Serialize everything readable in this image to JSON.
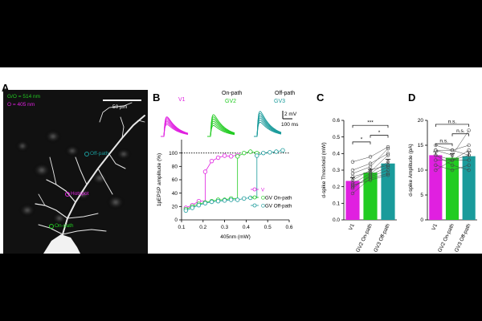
{
  "panels": {
    "a": "A",
    "b": "B",
    "c": "C",
    "d": "D"
  },
  "panel_a": {
    "legend_green": "G/",
    "legend_green_rest": "O = 514 nm",
    "legend_magenta": "O = 405 nm",
    "scale_bar": "50 µm",
    "labels": {
      "off_path": "Off-path",
      "on_path": "On-path",
      "hotspot": "Hotspot"
    },
    "colors": {
      "green": "#22cc22",
      "magenta": "#e020e0",
      "teal": "#1a9b9b"
    }
  },
  "panel_b_traces": {
    "labels": [
      {
        "title": "",
        "tag": "V1",
        "color": "#e020e0"
      },
      {
        "title": "On-path",
        "tag": "GV2",
        "color": "#22cc22"
      },
      {
        "title": "Off-path",
        "tag": "GV3",
        "color": "#1a9b9b"
      }
    ],
    "scale_mv": "2 mV",
    "scale_ms": "100 ms"
  },
  "chart_data": [
    {
      "type": "line",
      "ylabel": "1pEPSP amplitude (%)",
      "xlabel": "405nm (mW)",
      "xlim": [
        0.1,
        0.6
      ],
      "ylim": [
        0,
        120
      ],
      "xticks": [
        "0.1",
        "0.2",
        "0.3",
        "0.4",
        "0.5",
        "0.6"
      ],
      "yticks": [
        "0",
        "20",
        "40",
        "60",
        "80",
        "100"
      ],
      "reference_line": 100,
      "legend": [
        "V",
        "GV On-path",
        "GV Off-path"
      ],
      "legend_prefix": [
        "",
        "O",
        "O"
      ],
      "series": [
        {
          "name": "V",
          "color": "#e020e0",
          "x": [
            0.12,
            0.15,
            0.18,
            0.21,
            0.24,
            0.27,
            0.3,
            0.33,
            0.36
          ],
          "y": [
            18,
            22,
            28,
            72,
            88,
            93,
            96,
            95,
            97
          ]
        },
        {
          "name": "GV On-path",
          "color": "#22cc22",
          "x": [
            0.12,
            0.15,
            0.18,
            0.21,
            0.24,
            0.27,
            0.3,
            0.33,
            0.36,
            0.39,
            0.42,
            0.45
          ],
          "y": [
            16,
            20,
            24,
            26,
            28,
            30,
            30,
            32,
            95,
            100,
            102,
            100
          ]
        },
        {
          "name": "GV Off-path",
          "color": "#1a9b9b",
          "x": [
            0.12,
            0.15,
            0.18,
            0.21,
            0.24,
            0.27,
            0.3,
            0.33,
            0.36,
            0.39,
            0.42,
            0.45,
            0.48,
            0.51,
            0.54,
            0.57
          ],
          "y": [
            14,
            18,
            22,
            25,
            27,
            28,
            29,
            30,
            30,
            32,
            33,
            96,
            100,
            101,
            102,
            104
          ]
        }
      ]
    },
    {
      "type": "bar",
      "ylabel": "d-spike Threshold (mW)",
      "categories": [
        "V1",
        "GV2 On-path",
        "GV3 Off-path"
      ],
      "values": [
        0.235,
        0.285,
        0.34
      ],
      "errors": [
        0.02,
        0.02,
        0.025
      ],
      "colors": [
        "#e020e0",
        "#22cc22",
        "#1a9b9b"
      ],
      "ylim": [
        0,
        0.6
      ],
      "yticks": [
        "0.0",
        "0.1",
        "0.2",
        "0.3",
        "0.4",
        "0.5",
        "0.6"
      ],
      "pairs": [
        [
          0.16,
          0.25,
          0.28
        ],
        [
          0.19,
          0.27,
          0.32
        ],
        [
          0.2,
          0.26,
          0.3
        ],
        [
          0.22,
          0.28,
          0.35
        ],
        [
          0.24,
          0.3,
          0.33
        ],
        [
          0.26,
          0.29,
          0.39
        ],
        [
          0.28,
          0.32,
          0.43
        ],
        [
          0.3,
          0.34,
          0.4
        ],
        [
          0.21,
          0.24,
          0.27
        ],
        [
          0.35,
          0.38,
          0.44
        ]
      ],
      "significance": [
        {
          "from": 0,
          "to": 2,
          "label": "***",
          "y": 0.57
        },
        {
          "from": 0,
          "to": 1,
          "label": "*",
          "y": 0.47
        },
        {
          "from": 1,
          "to": 2,
          "label": "*",
          "y": 0.51
        }
      ]
    },
    {
      "type": "bar",
      "ylabel": "d-spike Amplitude (pA)",
      "categories": [
        "V1",
        "GV2 On-path",
        "GV3 Off-path"
      ],
      "values": [
        13,
        12.5,
        12.8
      ],
      "errors": [
        0.7,
        0.8,
        0.9
      ],
      "colors": [
        "#e020e0",
        "#22cc22",
        "#1a9b9b"
      ],
      "ylim": [
        0,
        20
      ],
      "yticks": [
        "0",
        "5",
        "10",
        "15",
        "20"
      ],
      "pairs": [
        [
          15,
          14,
          13
        ],
        [
          14,
          13,
          18
        ],
        [
          13,
          12,
          12
        ],
        [
          12,
          12,
          14
        ],
        [
          11,
          10,
          11
        ],
        [
          13,
          11,
          10
        ],
        [
          10,
          12,
          13
        ],
        [
          14,
          14,
          15
        ]
      ],
      "significance": [
        {
          "from": 0,
          "to": 2,
          "label": "n.s.",
          "y": 19.2
        },
        {
          "from": 0,
          "to": 1,
          "label": "n.s.",
          "y": 15.3
        },
        {
          "from": 1,
          "to": 2,
          "label": "n.s.",
          "y": 17.3
        }
      ]
    }
  ]
}
